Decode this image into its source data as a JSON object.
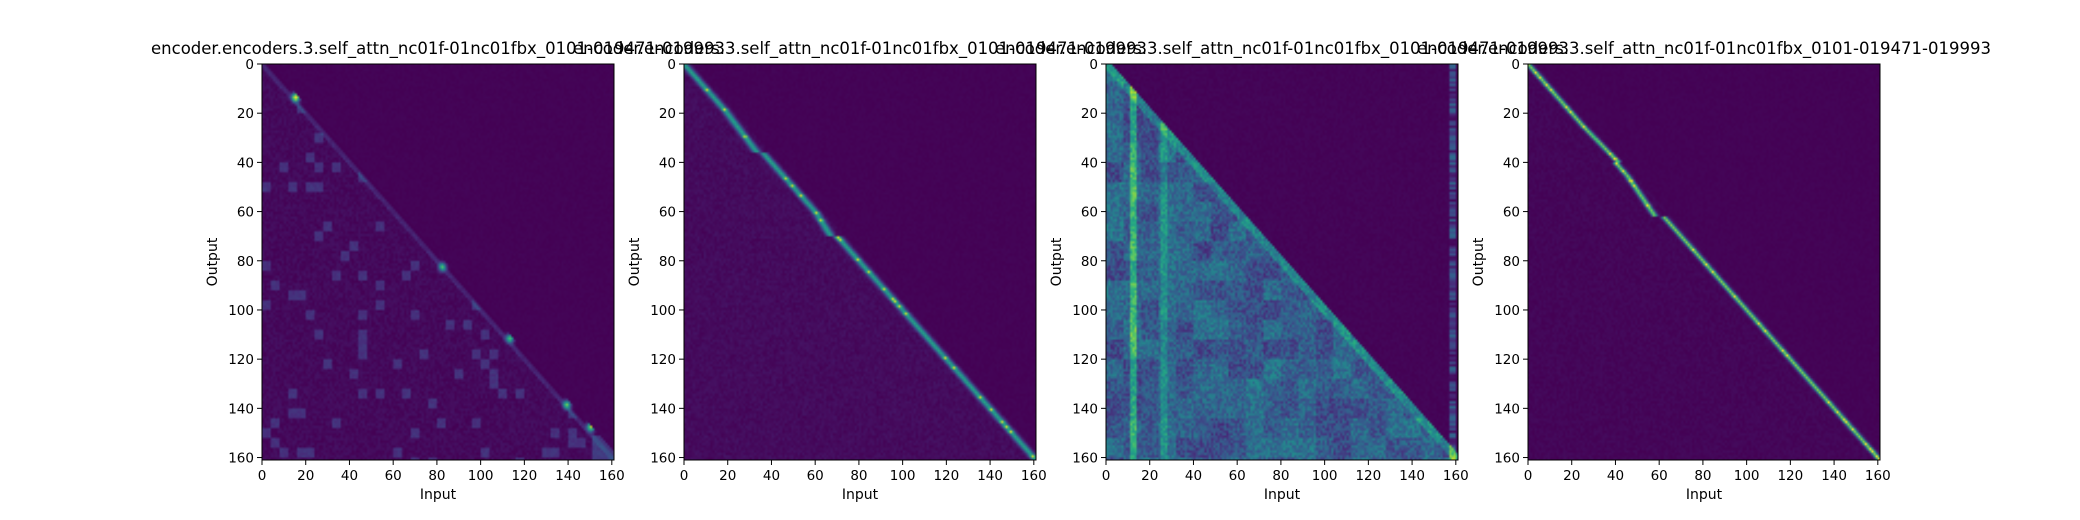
{
  "chart_data": [
    {
      "type": "heatmap",
      "title": "encoder.encoders.3.self_attn_nc01f-01nc01fbx_0101-019471-019993",
      "xlabel": "Input",
      "ylabel": "Output",
      "xlim": [
        0,
        161
      ],
      "ylim": [
        161,
        0
      ],
      "x_ticks": [
        "0",
        "20",
        "40",
        "60",
        "80",
        "100",
        "120",
        "140",
        "160"
      ],
      "y_ticks": [
        "0",
        "20",
        "40",
        "60",
        "80",
        "100",
        "120",
        "140",
        "160"
      ],
      "colormap": "viridis",
      "pattern": "lower-triangular attention, weak sparse diagonal, bright spots near (15,13),(82,82),(113,111),(139,138),(150,147)"
    },
    {
      "type": "heatmap",
      "title": "encoder.encoders.3.self_attn_nc01f-01nc01fbx_0101-019471-019993",
      "xlabel": "Input",
      "ylabel": "Output",
      "xlim": [
        0,
        161
      ],
      "ylim": [
        161,
        0
      ],
      "x_ticks": [
        "0",
        "20",
        "40",
        "60",
        "80",
        "100",
        "120",
        "140",
        "160"
      ],
      "y_ticks": [
        "0",
        "20",
        "40",
        "60",
        "80",
        "100",
        "120",
        "140",
        "160"
      ],
      "colormap": "viridis",
      "pattern": "strong main diagonal with staircase steps"
    },
    {
      "type": "heatmap",
      "title": "encoder.encoders.3.self_attn_nc01f-01nc01fbx_0101-019471-019993",
      "xlabel": "Input",
      "ylabel": "Output",
      "xlim": [
        0,
        161
      ],
      "ylim": [
        161,
        0
      ],
      "x_ticks": [
        "0",
        "20",
        "40",
        "60",
        "80",
        "100",
        "120",
        "140",
        "160"
      ],
      "y_ticks": [
        "0",
        "20",
        "40",
        "60",
        "80",
        "100",
        "120",
        "140",
        "160"
      ],
      "colormap": "viridis",
      "pattern": "diffuse lower-triangular attention with vertical streaks near columns 12 and 158"
    },
    {
      "type": "heatmap",
      "title": "encoder.encoders.3.self_attn_nc01f-01nc01fbx_0101-019471-019993",
      "xlabel": "Input",
      "ylabel": "Output",
      "xlim": [
        0,
        161
      ],
      "ylim": [
        161,
        0
      ],
      "x_ticks": [
        "0",
        "20",
        "40",
        "60",
        "80",
        "100",
        "120",
        "140",
        "160"
      ],
      "y_ticks": [
        "0",
        "20",
        "40",
        "60",
        "80",
        "100",
        "120",
        "140",
        "160"
      ],
      "colormap": "viridis",
      "pattern": "sharp main diagonal with staircase steps, very bright"
    }
  ],
  "colors": {
    "background": "#440154",
    "low": "#46085c",
    "mid": "#31688e",
    "high": "#35b779",
    "peak": "#fde725"
  }
}
